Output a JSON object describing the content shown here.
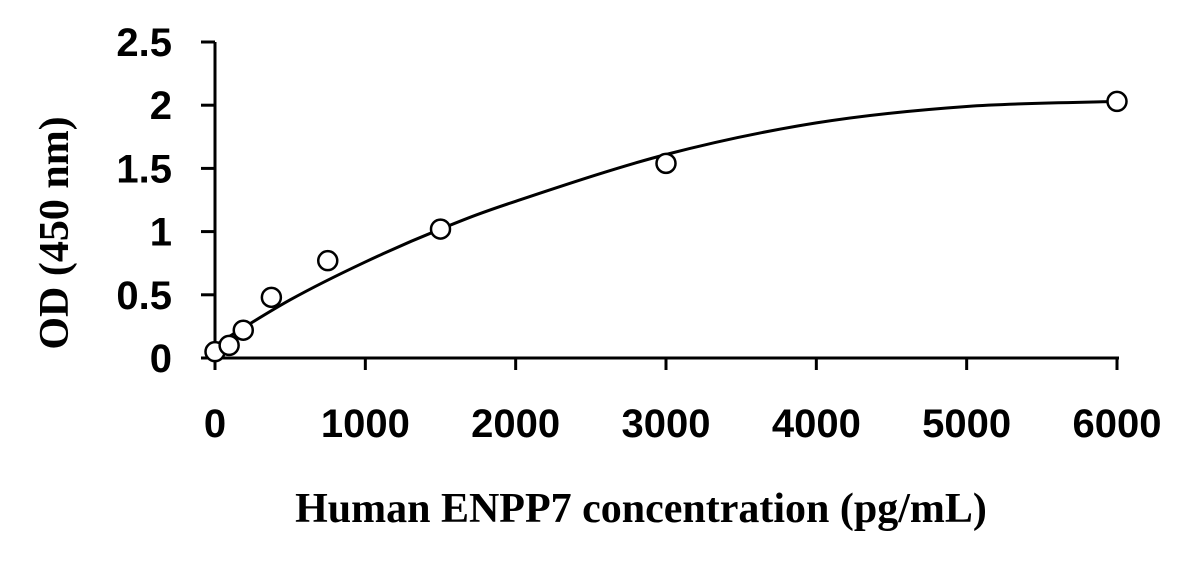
{
  "chart_data": {
    "type": "scatter",
    "xlabel": "Human ENPP7 concentration (pg/mL)",
    "ylabel": "OD (450 nm)",
    "xlim": [
      0,
      6000
    ],
    "ylim": [
      0,
      2.5
    ],
    "x_ticks": [
      "0",
      "1000",
      "2000",
      "3000",
      "4000",
      "5000",
      "6000"
    ],
    "y_ticks": [
      "0",
      "0.5",
      "1",
      "1.5",
      "2",
      "2.5"
    ],
    "grid": false,
    "legend": "none",
    "series": [
      {
        "marker": "open-circle",
        "points": [
          {
            "x": 0,
            "y": 0.05
          },
          {
            "x": 94,
            "y": 0.1
          },
          {
            "x": 188,
            "y": 0.22
          },
          {
            "x": 375,
            "y": 0.48
          },
          {
            "x": 750,
            "y": 0.77
          },
          {
            "x": 1500,
            "y": 1.02
          },
          {
            "x": 3000,
            "y": 1.54
          },
          {
            "x": 6000,
            "y": 2.03
          }
        ]
      }
    ],
    "fit_curve": {
      "type": "polynomial",
      "points": [
        {
          "x": 0,
          "y": 0.1
        },
        {
          "x": 500,
          "y": 0.46
        },
        {
          "x": 1000,
          "y": 0.76
        },
        {
          "x": 1500,
          "y": 1.02
        },
        {
          "x": 2000,
          "y": 1.24
        },
        {
          "x": 3000,
          "y": 1.61
        },
        {
          "x": 4000,
          "y": 1.86
        },
        {
          "x": 5000,
          "y": 1.99
        },
        {
          "x": 6000,
          "y": 2.03
        }
      ]
    }
  }
}
